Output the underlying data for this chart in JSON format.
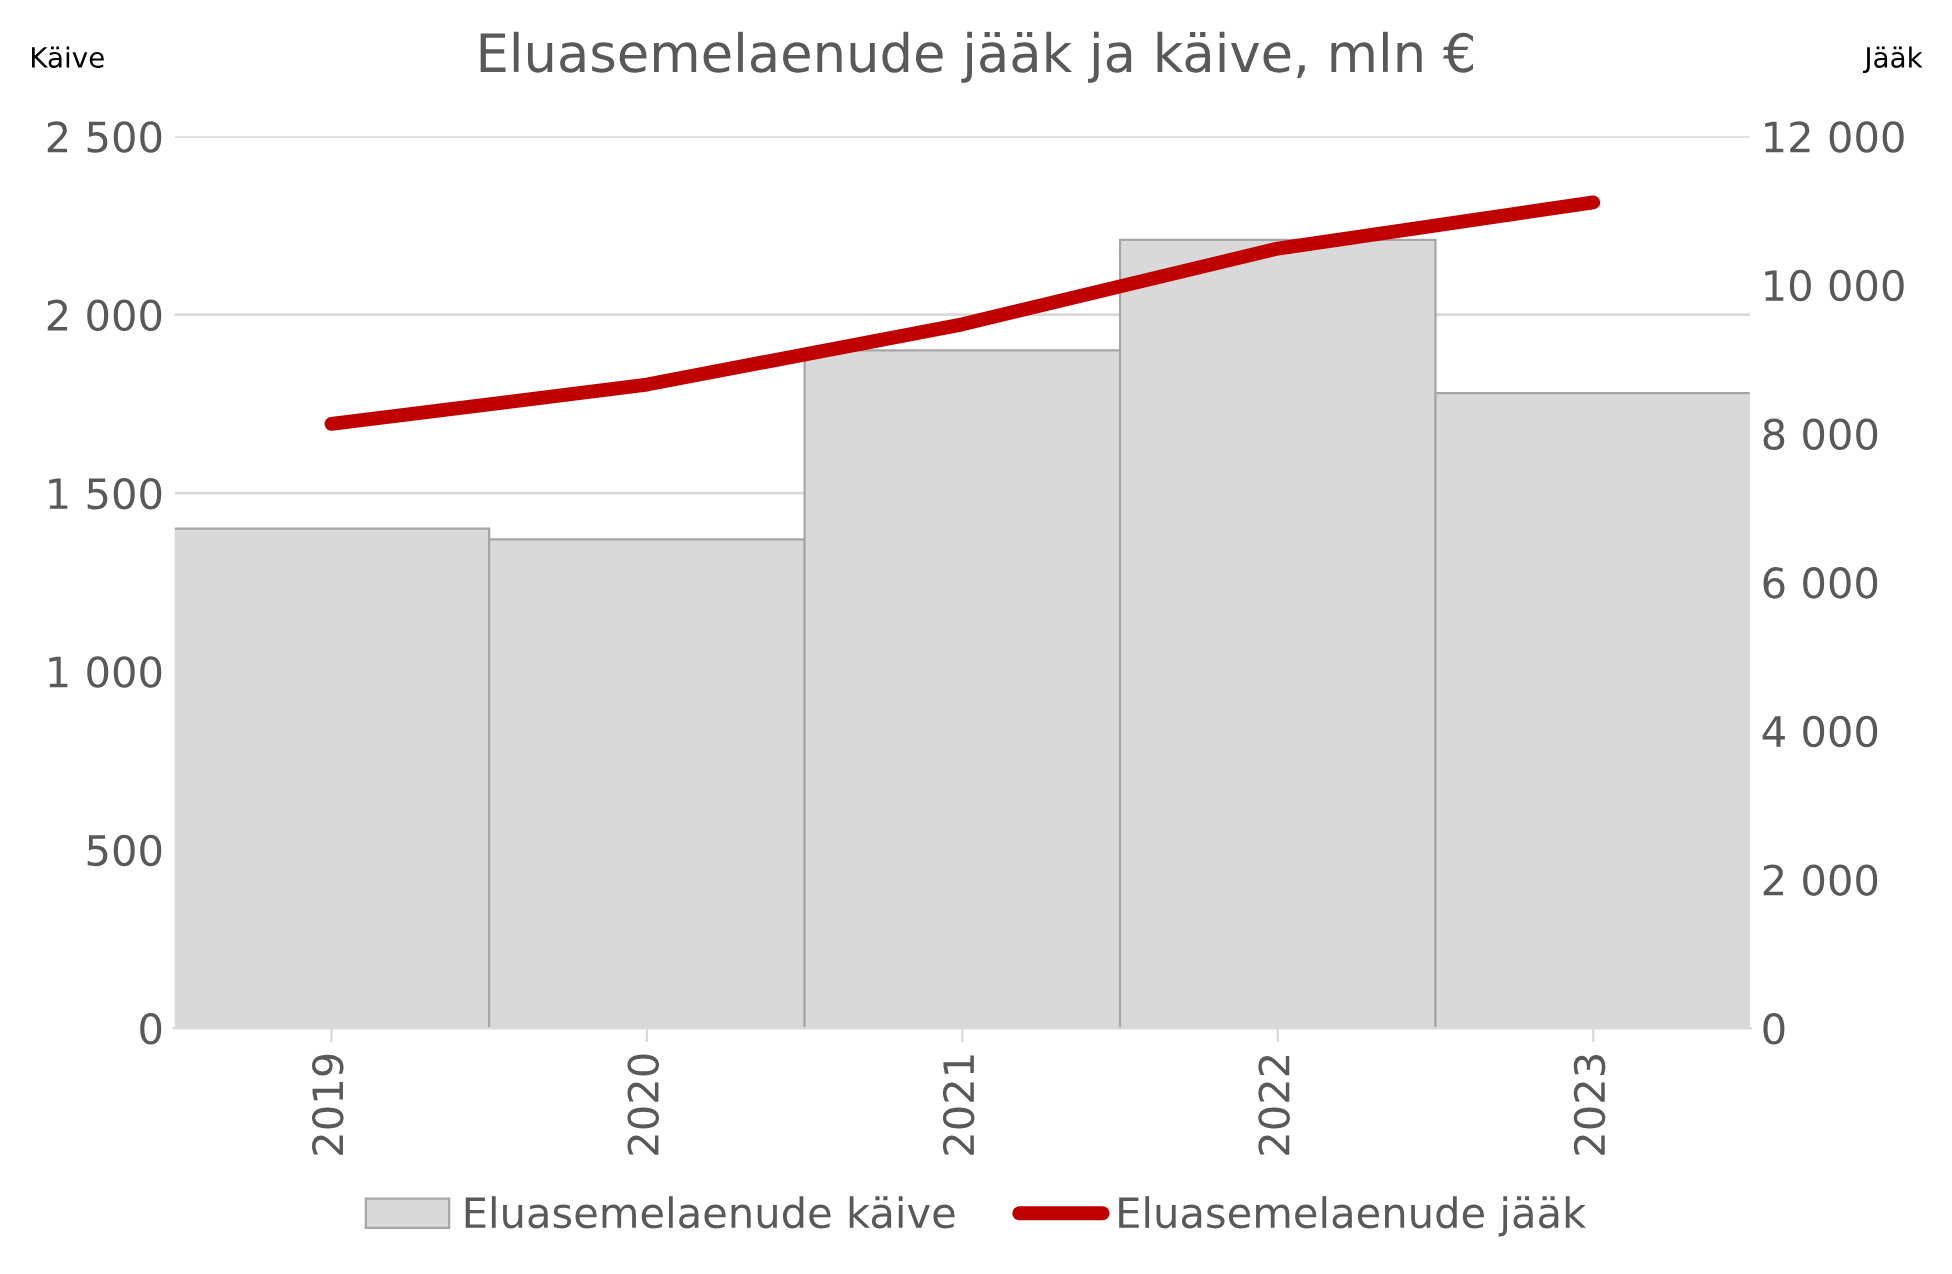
{
  "chart_data": {
    "type": "bar",
    "title": "Eluasemelaenude jääk ja käive, mln €",
    "ylabel": "Käive",
    "y2label": "Jääk",
    "categories": [
      "2019",
      "2020",
      "2021",
      "2022",
      "2023"
    ],
    "series": [
      {
        "name": "Eluasemelaenude käive",
        "color": "#d9d9d9",
        "values": [
          1400,
          1370,
          1900,
          2210,
          1780
        ]
      },
      {
        "name": "Eluasemelaenude jääk",
        "type": "line",
        "axis": "y2",
        "color": "#c00000",
        "values": [
          8130,
          8660,
          9470,
          10490,
          11110
        ]
      }
    ],
    "ylim": [
      0,
      2500
    ],
    "yticks": [
      {
        "value": 0,
        "label": "0"
      },
      {
        "value": 500,
        "label": "500"
      },
      {
        "value": 1000,
        "label": "1 000"
      },
      {
        "value": 1500,
        "label": "1 500"
      },
      {
        "value": 2000,
        "label": "2 000"
      },
      {
        "value": 2500,
        "label": "2 500"
      }
    ],
    "y2lim": [
      0,
      12000
    ],
    "y2ticks": [
      {
        "value": 0,
        "label": "0"
      },
      {
        "value": 2000,
        "label": "2 000"
      },
      {
        "value": 4000,
        "label": "4 000"
      },
      {
        "value": 6000,
        "label": "6 000"
      },
      {
        "value": 8000,
        "label": "8 000"
      },
      {
        "value": 10000,
        "label": "10 000"
      },
      {
        "value": 12000,
        "label": "12 000"
      }
    ],
    "grid": "y",
    "legend": "bottom",
    "marker": "none",
    "line_style": "solid"
  }
}
